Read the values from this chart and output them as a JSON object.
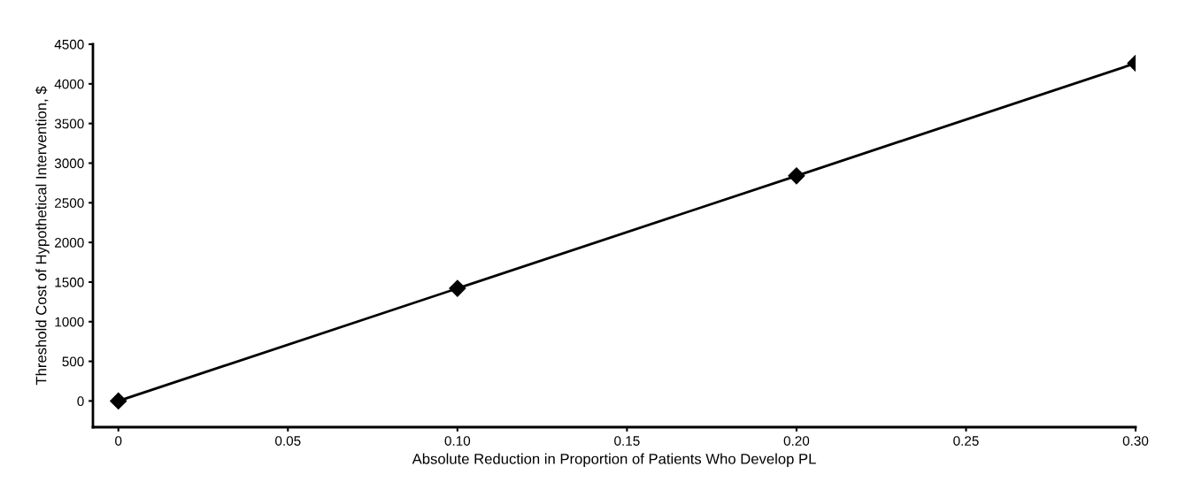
{
  "chart_data": {
    "type": "line",
    "xlabel": "Absolute Reduction in Proportion of Patients Who Develop PL",
    "ylabel": "Threshold Cost of Hypothetical Intervention, $",
    "x": [
      0,
      0.1,
      0.2,
      0.3
    ],
    "series": [
      {
        "color": "#000000",
        "values": [
          0,
          1420,
          2840,
          4260
        ]
      }
    ],
    "marker": "diamond",
    "line_style": "solid",
    "xlim": [
      -0.0075,
      0.3
    ],
    "xticks": [
      {
        "value": 0,
        "label": "0"
      },
      0.05,
      {
        "value": 0.1,
        "label": "0.10"
      },
      0.15,
      {
        "value": 0.2,
        "label": "0.20"
      },
      0.25,
      {
        "value": 0.3,
        "label": "0.30"
      }
    ],
    "ylim": [
      -330,
      4500
    ],
    "yticks": [
      0,
      500,
      1000,
      1500,
      2000,
      2500,
      3000,
      3500,
      4000,
      4500
    ],
    "grid": false,
    "legend": false
  }
}
